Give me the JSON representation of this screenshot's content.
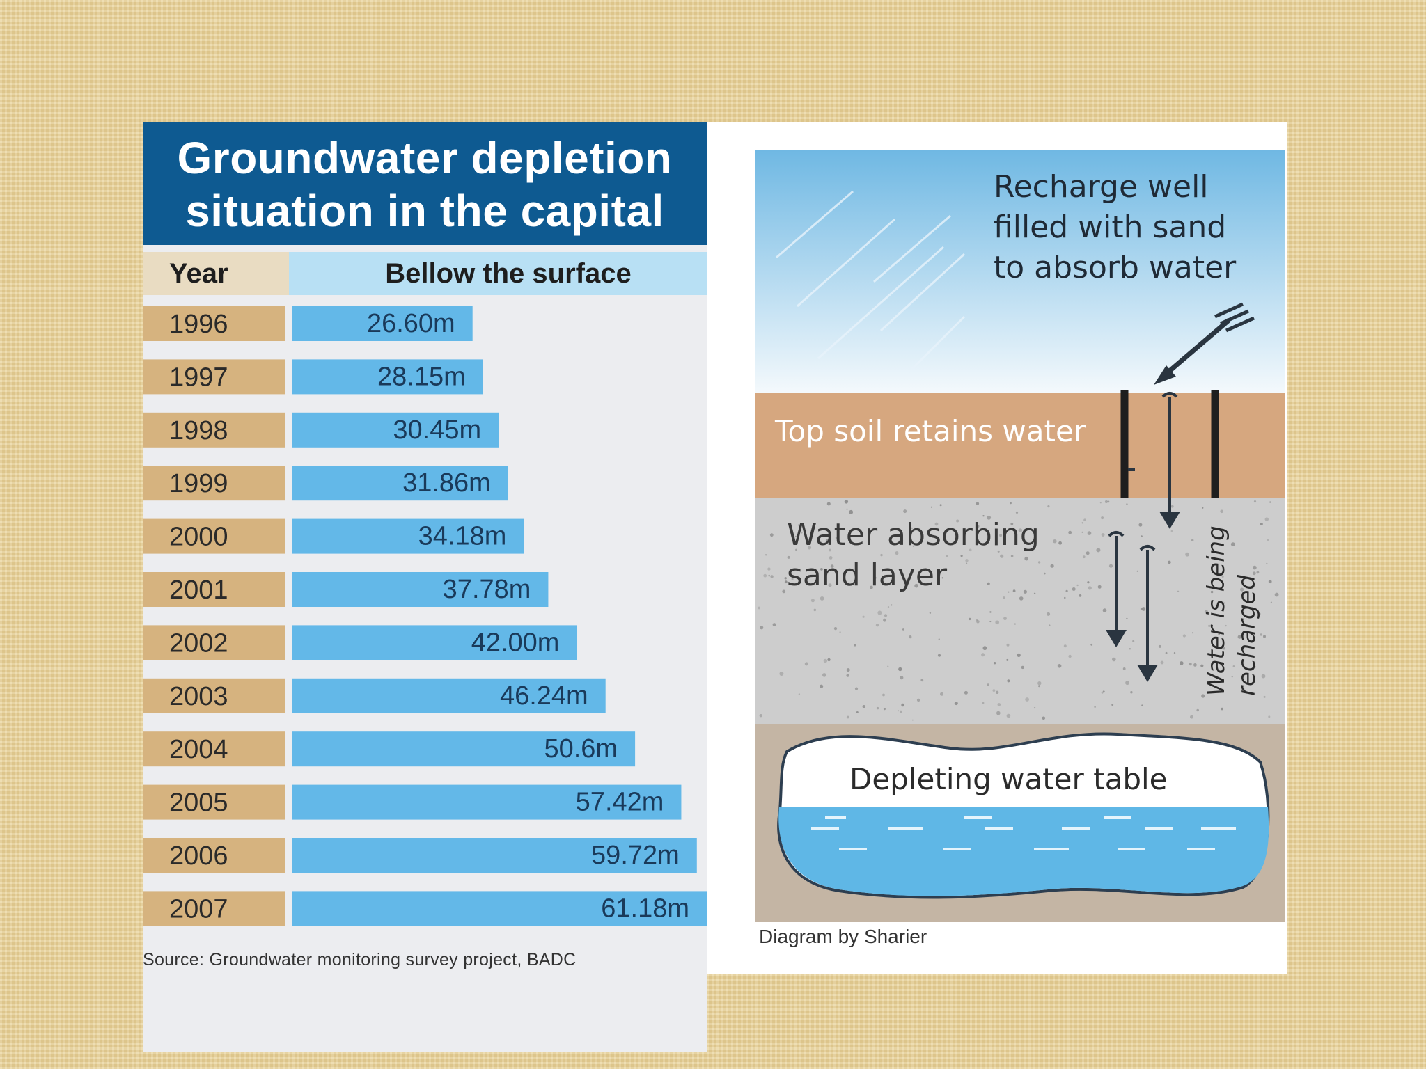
{
  "chart_data": {
    "type": "bar",
    "title": "Groundwater depletion situation in the capital",
    "title_lines": [
      "Groundwater depletion",
      "situation in the capital"
    ],
    "column_headers": [
      "Year",
      "Bellow the surface"
    ],
    "categories": [
      "1996",
      "1997",
      "1998",
      "1999",
      "2000",
      "2001",
      "2002",
      "2003",
      "2004",
      "2005",
      "2006",
      "2007"
    ],
    "values": [
      26.6,
      28.15,
      30.45,
      31.86,
      34.18,
      37.78,
      42.0,
      46.24,
      50.6,
      57.42,
      59.72,
      61.18
    ],
    "value_labels": [
      "26.60m",
      "28.15m",
      "30.45m",
      "31.86m",
      "34.18m",
      "37.78m",
      "42.00m",
      "46.24m",
      "50.6m",
      "57.42m",
      "59.72m",
      "61.18m"
    ],
    "orientation": "horizontal",
    "source": "Source: Groundwater monitoring survey project, BADC",
    "colors": {
      "title_bg": "#0e5a91",
      "bar": "#63b8e8",
      "header": "#b8e0f4",
      "year_bg": "#d6b37f"
    }
  },
  "diagram": {
    "recharge_well": "Recharge well\nfilled with sand\nto absorb water",
    "top_soil": "Top soil retains water",
    "sand_layer": "Water absorbing\nsand layer",
    "water_table": "Depleting water table",
    "recharged": "Water is being\nrecharged",
    "credit": "Diagram by Sharier"
  }
}
